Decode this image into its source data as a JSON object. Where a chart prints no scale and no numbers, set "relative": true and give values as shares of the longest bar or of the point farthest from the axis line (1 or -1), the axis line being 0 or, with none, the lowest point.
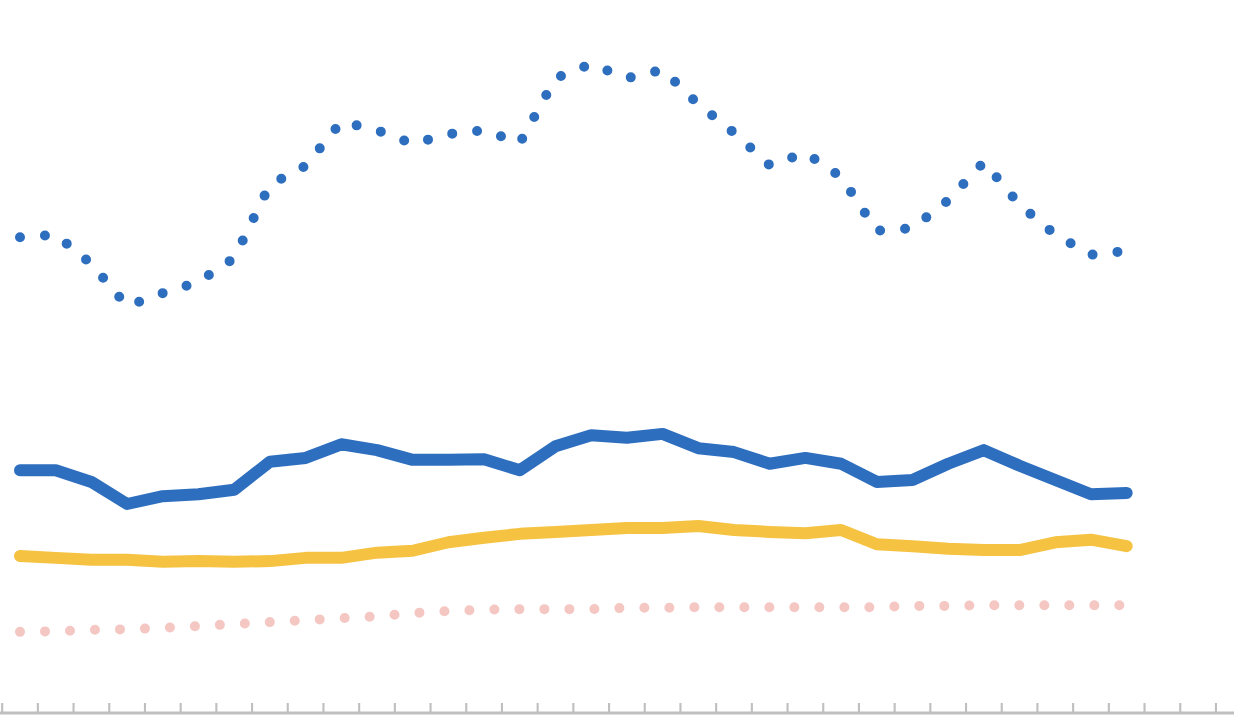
{
  "chart_data": {
    "type": "line",
    "relative": true,
    "grid": false,
    "categories": [
      null,
      null,
      null,
      null,
      null,
      null,
      null,
      null,
      null,
      null,
      null,
      null,
      null,
      null,
      null,
      null,
      null,
      null,
      null,
      null,
      null,
      null,
      null,
      null,
      null,
      null,
      null,
      null,
      null,
      null,
      null,
      null,
      null,
      null
    ],
    "series": [
      {
        "color": "#2e6ebf",
        "line_style": "dotted",
        "values": [
          0.733,
          0.737,
          0.692,
          0.627,
          0.647,
          0.664,
          0.701,
          0.814,
          0.843,
          0.911,
          0.898,
          0.877,
          0.892,
          0.898,
          0.878,
          0.978,
          1,
          0.978,
          0.991,
          0.938,
          0.894,
          0.844,
          0.863,
          0.826,
          0.743,
          0.747,
          0.79,
          0.849,
          0.783,
          0.737,
          0.706,
          0.712,
          null,
          null
        ]
      },
      {
        "color": "#2e6ebf",
        "line_style": "solid",
        "values": [
          0.374,
          0.374,
          0.356,
          0.322,
          0.334,
          0.337,
          0.344,
          0.387,
          0.393,
          0.414,
          0.405,
          0.39,
          0.39,
          0.391,
          0.374,
          0.411,
          0.428,
          0.424,
          0.43,
          0.408,
          0.402,
          0.384,
          0.393,
          0.384,
          0.356,
          0.359,
          0.384,
          0.405,
          0.381,
          0.359,
          0.337,
          0.339,
          null,
          null
        ]
      },
      {
        "color": "#f5c242",
        "line_style": "solid",
        "values": [
          0.242,
          0.239,
          0.236,
          0.236,
          0.233,
          0.234,
          0.233,
          0.234,
          0.239,
          0.239,
          0.247,
          0.25,
          0.263,
          0.27,
          0.276,
          0.279,
          0.282,
          0.285,
          0.285,
          0.288,
          0.282,
          0.279,
          0.277,
          0.282,
          0.26,
          0.257,
          0.253,
          0.251,
          0.251,
          0.263,
          0.267,
          0.257,
          null,
          null
        ]
      },
      {
        "color": "#f4c7c3",
        "line_style": "dotted",
        "values": [
          0.125,
          0.126,
          0.128,
          0.129,
          0.131,
          0.134,
          0.137,
          0.14,
          0.143,
          0.146,
          0.149,
          0.154,
          0.157,
          0.159,
          0.16,
          0.16,
          0.16,
          0.162,
          0.162,
          0.163,
          0.163,
          0.163,
          0.163,
          0.163,
          0.163,
          0.165,
          0.165,
          0.166,
          0.166,
          0.166,
          0.166,
          0.166,
          null,
          null
        ]
      }
    ]
  }
}
